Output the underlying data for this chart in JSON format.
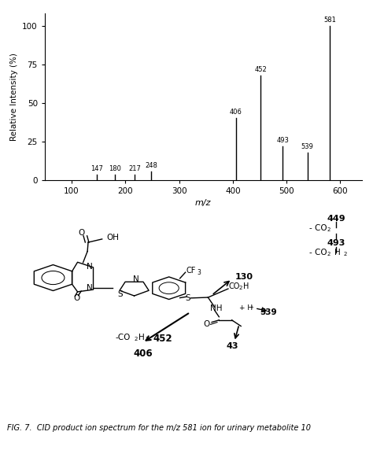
{
  "xlabel": "m/z",
  "ylabel": "Relative Intensity (%)",
  "xlim": [
    50,
    640
  ],
  "ylim": [
    0,
    108
  ],
  "yticks": [
    0,
    25,
    50,
    75,
    100
  ],
  "xticks": [
    100,
    200,
    300,
    400,
    500,
    600
  ],
  "peaks": [
    {
      "mz": 147,
      "intensity": 3.5,
      "label": "147"
    },
    {
      "mz": 180,
      "intensity": 3.5,
      "label": "180"
    },
    {
      "mz": 217,
      "intensity": 3.5,
      "label": "217"
    },
    {
      "mz": 248,
      "intensity": 5.5,
      "label": "248"
    },
    {
      "mz": 406,
      "intensity": 40.0,
      "label": "406"
    },
    {
      "mz": 452,
      "intensity": 68.0,
      "label": "452"
    },
    {
      "mz": 493,
      "intensity": 22.0,
      "label": "493"
    },
    {
      "mz": 539,
      "intensity": 18.0,
      "label": "539"
    },
    {
      "mz": 581,
      "intensity": 100.0,
      "label": "581"
    }
  ],
  "caption": "FIG. 7.  CID product ion spectrum for the m/z 581 ion for urinary metabolite 10",
  "bar_color": "#000000",
  "background": "#ffffff",
  "spectrum_axes": [
    0.12,
    0.6,
    0.85,
    0.37
  ],
  "diagram_axes": [
    0.01,
    0.09,
    0.98,
    0.48
  ],
  "caption_axes": [
    0.01,
    0.01,
    0.98,
    0.07
  ]
}
